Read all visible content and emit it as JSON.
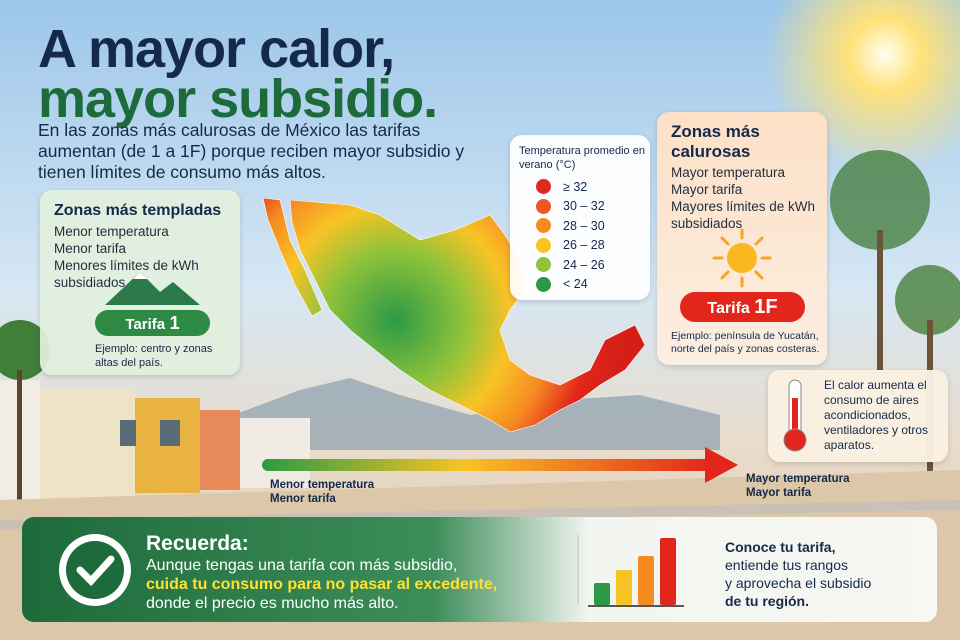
{
  "header": {
    "title_line1": "A mayor calor,",
    "title_line2": "mayor subsidio.",
    "intro": "En las zonas más calurosas de México las tarifas aumentan (de 1 a 1F) porque reciben mayor subsidio y tienen límites de consumo más altos."
  },
  "temperate": {
    "title": "Zonas más templadas",
    "lines": [
      "Menor temperatura",
      "Menor tarifa",
      "Menores límites de kWh subsidiados"
    ],
    "tariff_label": "Tarifa",
    "tariff_code": "1",
    "example": "Ejemplo: centro y zonas altas del país."
  },
  "legend": {
    "title": "Temperatura promedio en verano (°C)",
    "items": [
      {
        "label": "≥ 32",
        "color": "#e3261b"
      },
      {
        "label": "30 – 32",
        "color": "#f0561f"
      },
      {
        "label": "28 – 30",
        "color": "#f68b22"
      },
      {
        "label": "26 – 28",
        "color": "#f8c325"
      },
      {
        "label": "24 – 26",
        "color": "#8fc33a"
      },
      {
        "label": "< 24",
        "color": "#2c9a45"
      }
    ]
  },
  "hot": {
    "title": "Zonas más calurosas",
    "lines": [
      "Mayor temperatura",
      "Mayor tarifa",
      "Mayores límites de kWh subsidiados"
    ],
    "tariff_label": "Tarifa",
    "tariff_code": "1F",
    "example": "Ejemplo: península de Yucatán, norte del país y zonas costeras."
  },
  "note": "El calor aumenta el consumo de aires acondicionados, ventiladores y otros aparatos.",
  "scale": {
    "left_lines": [
      "Menor temperatura",
      "Menor tarifa"
    ],
    "right_lines": [
      "Mayor temperatura",
      "Mayor tarifa"
    ]
  },
  "reminder": {
    "title": "Recuerda:",
    "line1": "Aunque tengas una tarifa con más subsidio,",
    "highlight": "cuida tu consumo para no pasar al excedente,",
    "line3": "donde el precio es mucho más alto."
  },
  "cta": [
    "Conoce tu tarifa,",
    "entiende tus rangos",
    "y aprovecha el subsidio",
    "de tu región."
  ]
}
